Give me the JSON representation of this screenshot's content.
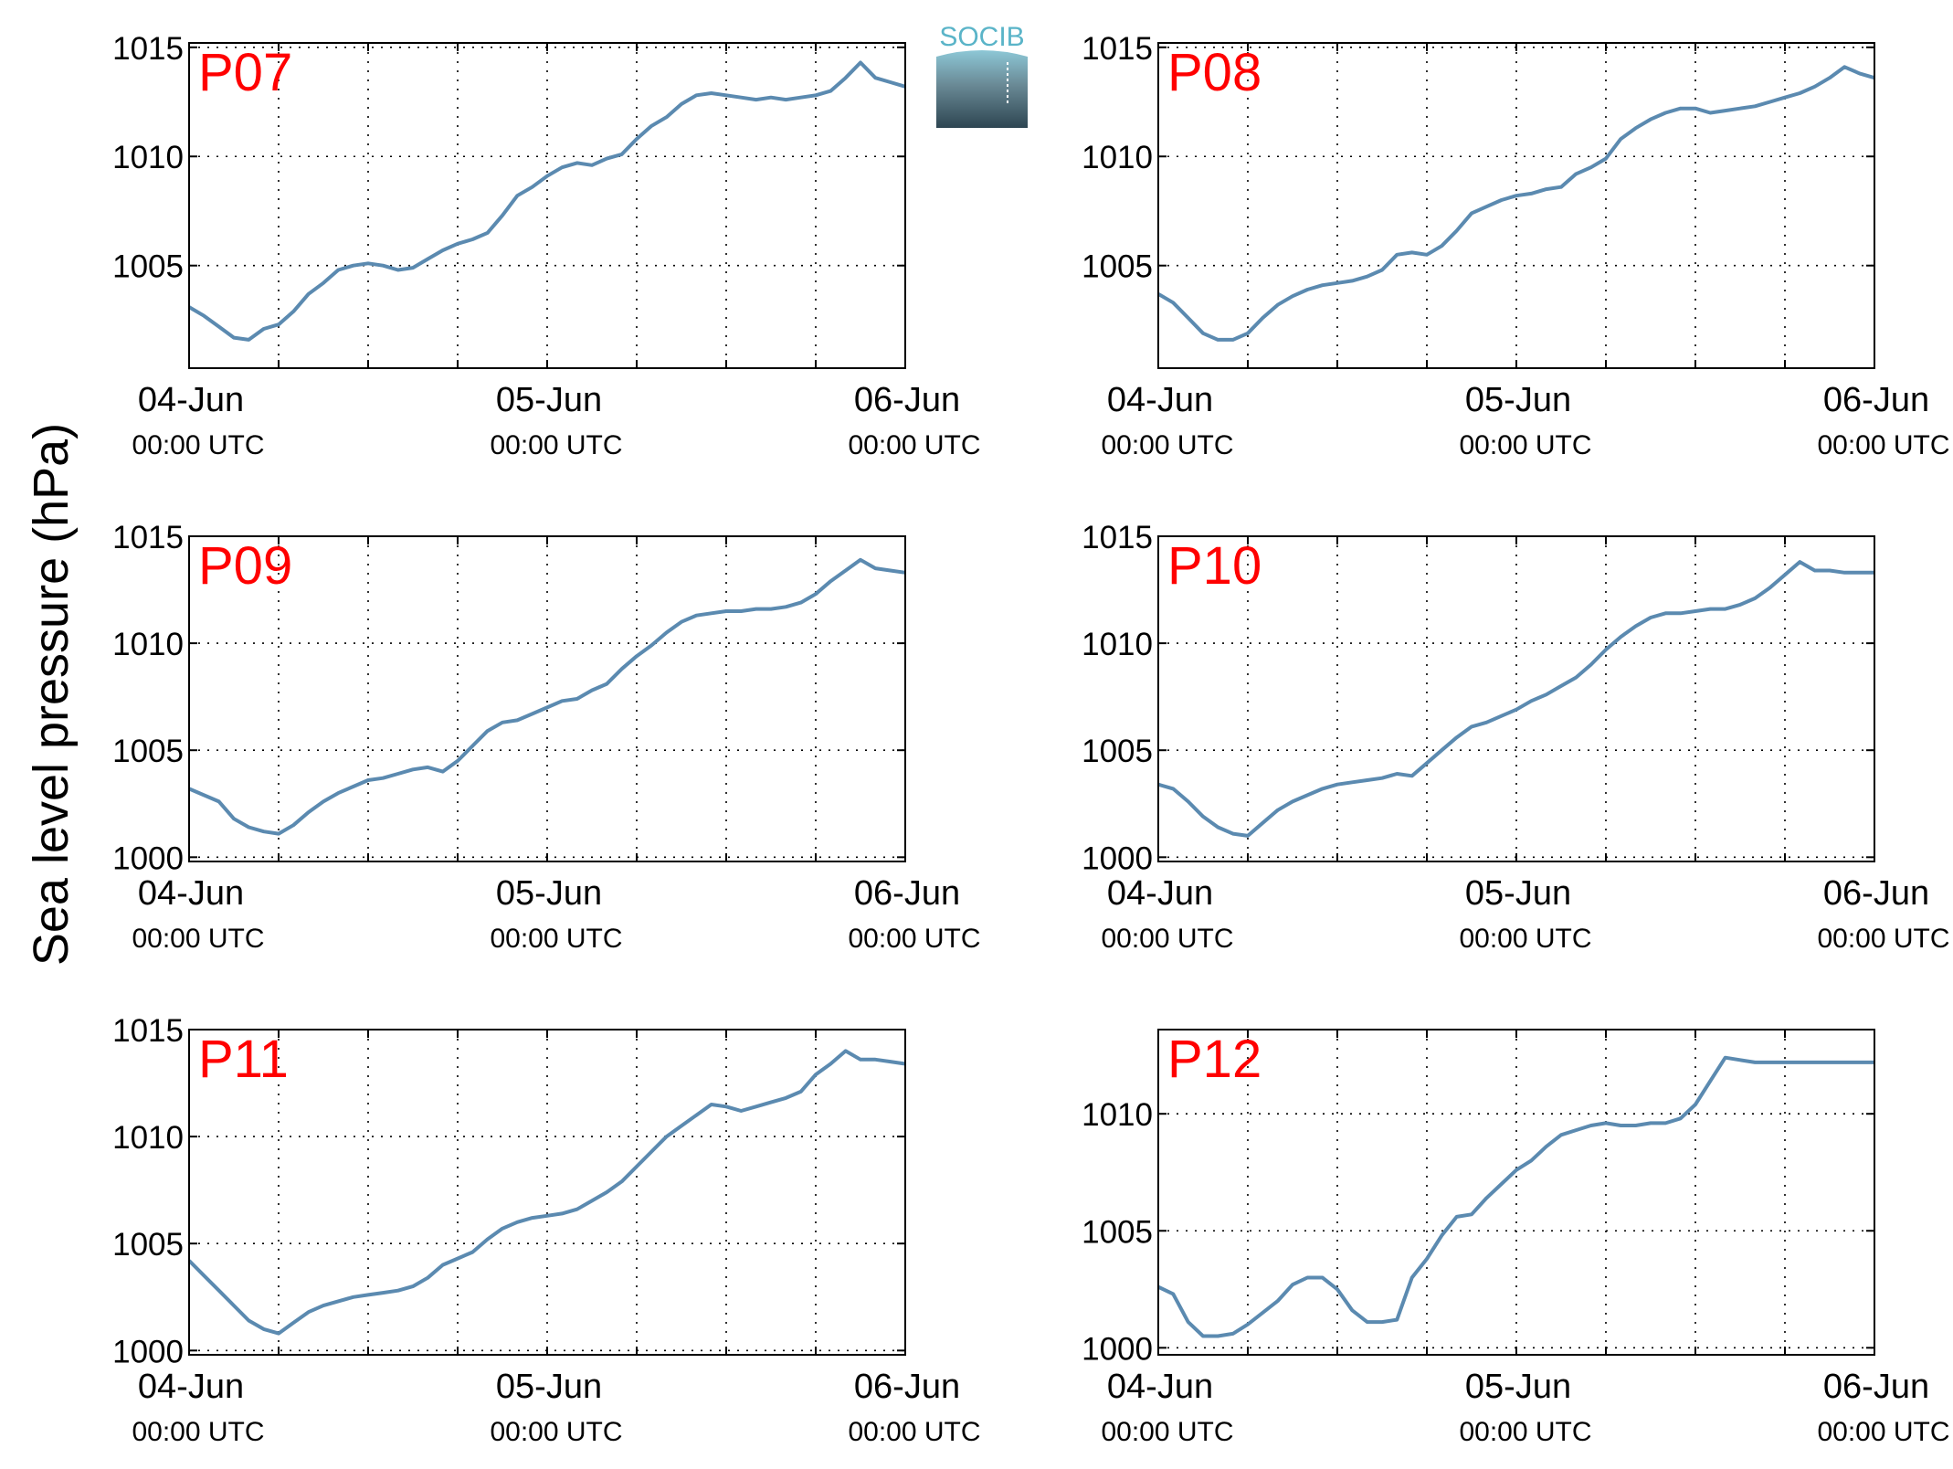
{
  "ylabel": "Sea level pressure (hPa)",
  "logo": {
    "text": "SOCIB",
    "colors": {
      "top": "#8ec9d8",
      "mid": "#6a8a96",
      "bottom": "#2e4652",
      "text": "#5ab4c8"
    }
  },
  "line_color": "#5b8ab0",
  "label_color": "#ff0000",
  "chart_data": [
    {
      "type": "line",
      "title": "P07",
      "ylim": [
        1000.3,
        1015.2
      ],
      "yticks": [
        1005,
        1010,
        1015
      ],
      "xlim": [
        "2017-06-04T00:00",
        "2017-06-06T00:00"
      ],
      "xticks": [
        {
          "date": "04-Jun",
          "time": "00:00 UTC"
        },
        {
          "date": "05-Jun",
          "time": "00:00 UTC"
        },
        {
          "date": "06-Jun",
          "time": "00:00 UTC"
        }
      ],
      "grid": true,
      "series": [
        {
          "x": [
            0,
            1,
            2,
            3,
            4,
            5,
            6,
            7,
            8,
            9,
            10,
            11,
            12,
            13,
            14,
            15,
            16,
            17,
            18,
            19,
            20,
            21,
            22,
            23,
            24,
            25,
            26,
            27,
            28,
            29,
            30,
            31,
            32,
            33,
            34,
            35,
            36,
            37,
            38,
            39,
            40,
            41,
            42,
            43,
            44,
            45,
            46,
            47,
            48
          ],
          "values": [
            1003.1,
            1002.7,
            1002.2,
            1001.7,
            1001.6,
            1002.1,
            1002.3,
            1002.9,
            1003.7,
            1004.2,
            1004.8,
            1005.0,
            1005.1,
            1005.0,
            1004.8,
            1004.9,
            1005.3,
            1005.7,
            1006.0,
            1006.2,
            1006.5,
            1007.3,
            1008.2,
            1008.6,
            1009.1,
            1009.5,
            1009.7,
            1009.6,
            1009.9,
            1010.1,
            1010.8,
            1011.4,
            1011.8,
            1012.4,
            1012.8,
            1012.9,
            1012.8,
            1012.7,
            1012.6,
            1012.7,
            1012.6,
            1012.7,
            1012.8,
            1013.0,
            1013.6,
            1014.3,
            1013.6,
            1013.4,
            1013.2
          ]
        }
      ]
    },
    {
      "type": "line",
      "title": "P08",
      "ylim": [
        1000.3,
        1015.2
      ],
      "yticks": [
        1005,
        1010,
        1015
      ],
      "xlim": [
        "2017-06-04T00:00",
        "2017-06-06T00:00"
      ],
      "xticks": [
        {
          "date": "04-Jun",
          "time": "00:00 UTC"
        },
        {
          "date": "05-Jun",
          "time": "00:00 UTC"
        },
        {
          "date": "06-Jun",
          "time": "00:00 UTC"
        }
      ],
      "grid": true,
      "series": [
        {
          "x": [
            0,
            1,
            2,
            3,
            4,
            5,
            6,
            7,
            8,
            9,
            10,
            11,
            12,
            13,
            14,
            15,
            16,
            17,
            18,
            19,
            20,
            21,
            22,
            23,
            24,
            25,
            26,
            27,
            28,
            29,
            30,
            31,
            32,
            33,
            34,
            35,
            36,
            37,
            38,
            39,
            40,
            41,
            42,
            43,
            44,
            45,
            46,
            47,
            48
          ],
          "values": [
            1003.7,
            1003.3,
            1002.6,
            1001.9,
            1001.6,
            1001.6,
            1001.9,
            1002.6,
            1003.2,
            1003.6,
            1003.9,
            1004.1,
            1004.2,
            1004.3,
            1004.5,
            1004.8,
            1005.5,
            1005.6,
            1005.5,
            1005.9,
            1006.6,
            1007.4,
            1007.7,
            1008.0,
            1008.2,
            1008.3,
            1008.5,
            1008.6,
            1009.2,
            1009.5,
            1009.9,
            1010.8,
            1011.3,
            1011.7,
            1012.0,
            1012.2,
            1012.2,
            1012.0,
            1012.1,
            1012.2,
            1012.3,
            1012.5,
            1012.7,
            1012.9,
            1013.2,
            1013.6,
            1014.1,
            1013.8,
            1013.6
          ]
        }
      ]
    },
    {
      "type": "line",
      "title": "P09",
      "ylim": [
        999.8,
        1015.0
      ],
      "yticks": [
        1000,
        1005,
        1010,
        1015
      ],
      "xlim": [
        "2017-06-04T00:00",
        "2017-06-06T00:00"
      ],
      "xticks": [
        {
          "date": "04-Jun",
          "time": "00:00 UTC"
        },
        {
          "date": "05-Jun",
          "time": "00:00 UTC"
        },
        {
          "date": "06-Jun",
          "time": "00:00 UTC"
        }
      ],
      "grid": true,
      "series": [
        {
          "x": [
            0,
            1,
            2,
            3,
            4,
            5,
            6,
            7,
            8,
            9,
            10,
            11,
            12,
            13,
            14,
            15,
            16,
            17,
            18,
            19,
            20,
            21,
            22,
            23,
            24,
            25,
            26,
            27,
            28,
            29,
            30,
            31,
            32,
            33,
            34,
            35,
            36,
            37,
            38,
            39,
            40,
            41,
            42,
            43,
            44,
            45,
            46,
            47,
            48
          ],
          "values": [
            1003.2,
            1002.9,
            1002.6,
            1001.8,
            1001.4,
            1001.2,
            1001.1,
            1001.5,
            1002.1,
            1002.6,
            1003.0,
            1003.3,
            1003.6,
            1003.7,
            1003.9,
            1004.1,
            1004.2,
            1004.0,
            1004.5,
            1005.2,
            1005.9,
            1006.3,
            1006.4,
            1006.7,
            1007.0,
            1007.3,
            1007.4,
            1007.8,
            1008.1,
            1008.8,
            1009.4,
            1009.9,
            1010.5,
            1011.0,
            1011.3,
            1011.4,
            1011.5,
            1011.5,
            1011.6,
            1011.6,
            1011.7,
            1011.9,
            1012.3,
            1012.9,
            1013.4,
            1013.9,
            1013.5,
            1013.4,
            1013.3
          ]
        }
      ]
    },
    {
      "type": "line",
      "title": "P10",
      "ylim": [
        999.8,
        1015.0
      ],
      "yticks": [
        1000,
        1005,
        1010,
        1015
      ],
      "xlim": [
        "2017-06-04T00:00",
        "2017-06-06T00:00"
      ],
      "xticks": [
        {
          "date": "04-Jun",
          "time": "00:00 UTC"
        },
        {
          "date": "05-Jun",
          "time": "00:00 UTC"
        },
        {
          "date": "06-Jun",
          "time": "00:00 UTC"
        }
      ],
      "grid": true,
      "series": [
        {
          "x": [
            0,
            1,
            2,
            3,
            4,
            5,
            6,
            7,
            8,
            9,
            10,
            11,
            12,
            13,
            14,
            15,
            16,
            17,
            18,
            19,
            20,
            21,
            22,
            23,
            24,
            25,
            26,
            27,
            28,
            29,
            30,
            31,
            32,
            33,
            34,
            35,
            36,
            37,
            38,
            39,
            40,
            41,
            42,
            43,
            44,
            45,
            46,
            47,
            48
          ],
          "values": [
            1003.4,
            1003.2,
            1002.6,
            1001.9,
            1001.4,
            1001.1,
            1001.0,
            1001.6,
            1002.2,
            1002.6,
            1002.9,
            1003.2,
            1003.4,
            1003.5,
            1003.6,
            1003.7,
            1003.9,
            1003.8,
            1004.4,
            1005.0,
            1005.6,
            1006.1,
            1006.3,
            1006.6,
            1006.9,
            1007.3,
            1007.6,
            1008.0,
            1008.4,
            1009.0,
            1009.7,
            1010.3,
            1010.8,
            1011.2,
            1011.4,
            1011.4,
            1011.5,
            1011.6,
            1011.6,
            1011.8,
            1012.1,
            1012.6,
            1013.2,
            1013.8,
            1013.4,
            1013.4,
            1013.3,
            1013.3,
            1013.3
          ]
        }
      ]
    },
    {
      "type": "line",
      "title": "P11",
      "ylim": [
        999.8,
        1015.0
      ],
      "yticks": [
        1000,
        1005,
        1010,
        1015
      ],
      "xlim": [
        "2017-06-04T00:00",
        "2017-06-06T00:00"
      ],
      "xticks": [
        {
          "date": "04-Jun",
          "time": "00:00 UTC"
        },
        {
          "date": "05-Jun",
          "time": "00:00 UTC"
        },
        {
          "date": "06-Jun",
          "time": "00:00 UTC"
        }
      ],
      "grid": true,
      "series": [
        {
          "x": [
            0,
            1,
            2,
            3,
            4,
            5,
            6,
            7,
            8,
            9,
            10,
            11,
            12,
            13,
            14,
            15,
            16,
            17,
            18,
            19,
            20,
            21,
            22,
            23,
            24,
            25,
            26,
            27,
            28,
            29,
            30,
            31,
            32,
            33,
            34,
            35,
            36,
            37,
            38,
            39,
            40,
            41,
            42,
            43,
            44,
            45,
            46,
            47,
            48
          ],
          "values": [
            1004.2,
            1003.5,
            1002.8,
            1002.1,
            1001.4,
            1001.0,
            1000.8,
            1001.3,
            1001.8,
            1002.1,
            1002.3,
            1002.5,
            1002.6,
            1002.7,
            1002.8,
            1003.0,
            1003.4,
            1004.0,
            1004.3,
            1004.6,
            1005.2,
            1005.7,
            1006.0,
            1006.2,
            1006.3,
            1006.4,
            1006.6,
            1007.0,
            1007.4,
            1007.9,
            1008.6,
            1009.3,
            1010.0,
            1010.5,
            1011.0,
            1011.5,
            1011.4,
            1011.2,
            1011.4,
            1011.6,
            1011.8,
            1012.1,
            1012.9,
            1013.4,
            1014.0,
            1013.6,
            1013.6,
            1013.5,
            1013.4
          ]
        }
      ]
    },
    {
      "type": "line",
      "title": "P12",
      "ylim": [
        999.7,
        1013.6
      ],
      "yticks": [
        1000,
        1005,
        1010
      ],
      "xlim": [
        "2017-06-04T00:00",
        "2017-06-06T00:00"
      ],
      "xticks": [
        {
          "date": "04-Jun",
          "time": "00:00 UTC"
        },
        {
          "date": "05-Jun",
          "time": "00:00 UTC"
        },
        {
          "date": "06-Jun",
          "time": "00:00 UTC"
        }
      ],
      "grid": true,
      "series": [
        {
          "x": [
            0,
            1,
            2,
            3,
            4,
            5,
            6,
            7,
            8,
            9,
            10,
            11,
            12,
            13,
            14,
            15,
            16,
            17,
            18,
            19,
            20,
            21,
            22,
            23,
            24,
            25,
            26,
            27,
            28,
            29,
            30,
            31,
            32,
            33,
            34,
            35,
            36,
            37,
            38,
            39,
            40,
            41,
            42,
            43,
            44,
            45,
            46,
            47,
            48
          ],
          "values": [
            1002.6,
            1002.3,
            1001.1,
            1000.5,
            1000.5,
            1000.6,
            1001.0,
            1001.5,
            1002.0,
            1002.7,
            1003.0,
            1003.0,
            1002.5,
            1001.6,
            1001.1,
            1001.1,
            1001.2,
            1003.0,
            1003.8,
            1004.8,
            1005.6,
            1005.7,
            1006.4,
            1007.0,
            1007.6,
            1008.0,
            1008.6,
            1009.1,
            1009.3,
            1009.5,
            1009.6,
            1009.5,
            1009.5,
            1009.6,
            1009.6,
            1009.8,
            1010.4,
            1011.4,
            1012.4,
            1012.3,
            1012.2,
            1012.2,
            1012.2,
            1012.2,
            1012.2,
            1012.2,
            1012.2,
            1012.2,
            1012.2
          ]
        }
      ]
    }
  ]
}
